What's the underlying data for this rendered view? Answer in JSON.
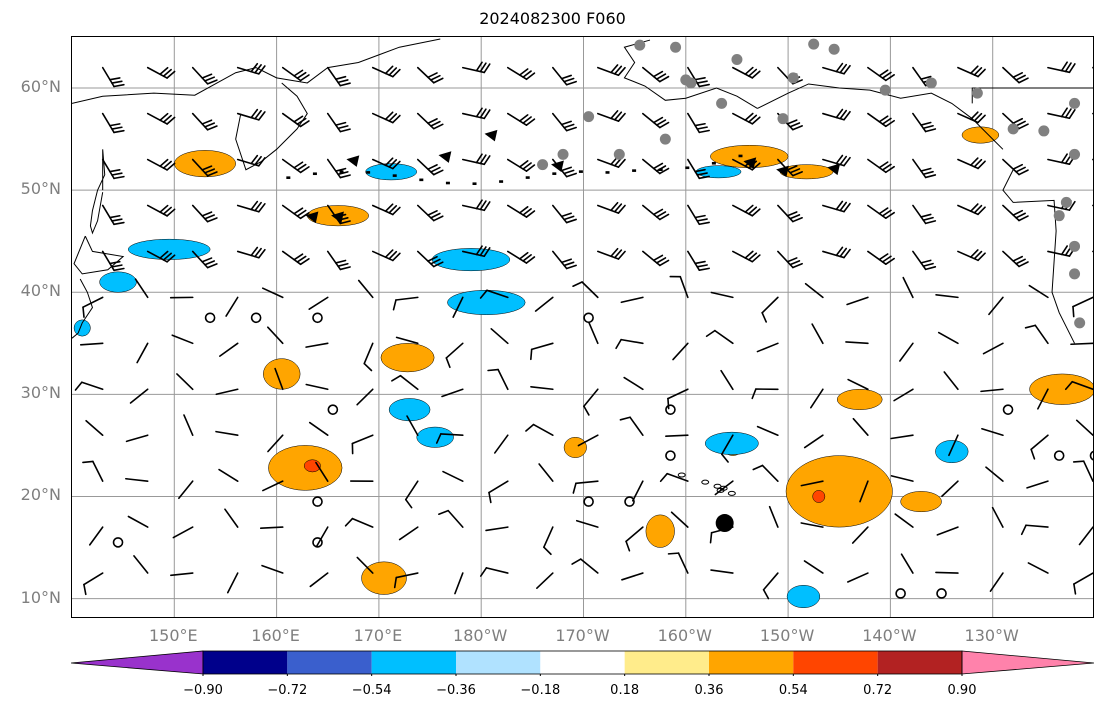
{
  "title": "2024082300 F060",
  "map": {
    "projection": "cylindrical",
    "lon_range": [
      140,
      240
    ],
    "lat_range": [
      8,
      65
    ],
    "lat_ticks": [
      {
        "value": 10,
        "label": "10°N"
      },
      {
        "value": 20,
        "label": "20°N"
      },
      {
        "value": 30,
        "label": "30°N"
      },
      {
        "value": 40,
        "label": "40°N"
      },
      {
        "value": 50,
        "label": "50°N"
      },
      {
        "value": 60,
        "label": "60°N"
      }
    ],
    "lon_ticks": [
      {
        "value": 150,
        "label": "150°E"
      },
      {
        "value": 160,
        "label": "160°E"
      },
      {
        "value": 170,
        "label": "170°E"
      },
      {
        "value": 180,
        "label": "180°W"
      },
      {
        "value": 190,
        "label": "170°W"
      },
      {
        "value": 200,
        "label": "160°W"
      },
      {
        "value": 210,
        "label": "150°W"
      },
      {
        "value": 220,
        "label": "140°W"
      },
      {
        "value": 230,
        "label": "130°W"
      }
    ],
    "grid": true,
    "coastline_color": "#000000",
    "gridline_color": "#999999"
  },
  "colorbar": {
    "ticks": [
      "−0.90",
      "−0.72",
      "−0.54",
      "−0.36",
      "−0.18",
      "0.18",
      "0.36",
      "0.54",
      "0.72",
      "0.90"
    ],
    "colors": [
      "#9932cc",
      "#00008b",
      "#3a5fcd",
      "#00bfff",
      "#b0e2ff",
      "#ffffff",
      "#ffec8b",
      "#ffa500",
      "#ff4500",
      "#b22222",
      "#ff82ab"
    ],
    "extend": "both"
  },
  "fields": {
    "positive_color": "#ffa500",
    "positive_core_color": "#ff4500",
    "negative_color": "#00bfff",
    "negative_light_color": "#b0e2ff",
    "station_marker_color": "#808080",
    "calm_marker": "circle"
  }
}
